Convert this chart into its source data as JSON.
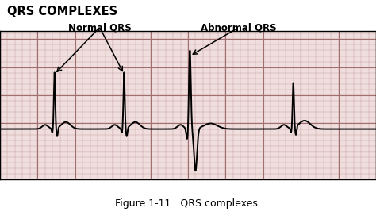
{
  "title": "QRS COMPLEXES",
  "caption": "Figure 1-11.  QRS complexes.",
  "label_normal": "Normal QRS",
  "label_abnormal": "Abnormal QRS",
  "bg_color": "#f0dede",
  "line_color": "#000000",
  "fig_bg": "#ffffff",
  "xlim": [
    0,
    10
  ],
  "ylim": [
    -1.8,
    3.5
  ]
}
